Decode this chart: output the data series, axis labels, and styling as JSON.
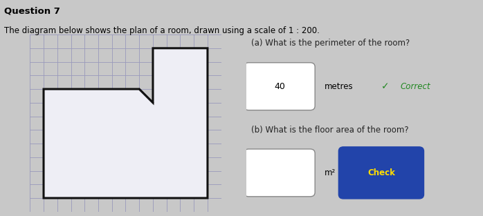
{
  "title_line1": "Question 7",
  "title_line2": "The diagram below shows the plan of a room, drawn using a scale of 1 : 200.",
  "grid_rows": 13,
  "grid_cols": 14,
  "grid_color": "#9999bb",
  "grid_linewidth": 0.6,
  "bg_color": "#dde0ea",
  "room_color": "#eeeef5",
  "room_linewidth": 2.2,
  "room_verts_x": [
    1,
    1,
    8,
    9,
    9,
    13,
    13,
    1
  ],
  "room_verts_y": [
    1,
    9,
    9,
    8,
    12,
    12,
    1,
    1
  ],
  "question_a": "(a) What is the perimeter of the room?",
  "answer_a": "40",
  "answer_a_label": "metres",
  "correct_text": "Correct",
  "question_b": "(b) What is the floor area of the room?",
  "m2_label": "m²",
  "check_text": "Check",
  "check_bg": "#2244aa",
  "check_text_color": "#ffdd00",
  "text_color": "#222222",
  "correct_color": "#228822",
  "page_bg": "#c8c8c8"
}
